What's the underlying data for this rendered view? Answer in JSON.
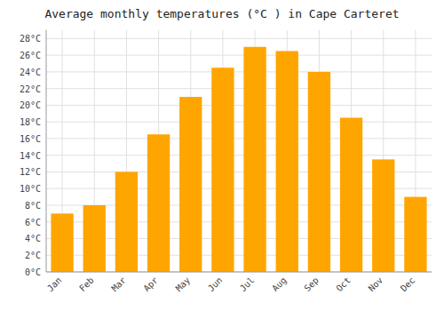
{
  "chart_data": {
    "type": "bar",
    "title": "Average monthly temperatures (°C ) in Cape Carteret",
    "categories": [
      "Jan",
      "Feb",
      "Mar",
      "Apr",
      "May",
      "Jun",
      "Jul",
      "Aug",
      "Sep",
      "Oct",
      "Nov",
      "Dec"
    ],
    "values": [
      7,
      8,
      12,
      16.5,
      21,
      24.5,
      27,
      26.5,
      24,
      18.5,
      13.5,
      9
    ],
    "color": "#FFA500",
    "ylim": [
      0,
      29
    ],
    "yticks": [
      {
        "value": 0,
        "label": "0°C"
      },
      {
        "value": 2,
        "label": "2°C"
      },
      {
        "value": 4,
        "label": "4°C"
      },
      {
        "value": 6,
        "label": "6°C"
      },
      {
        "value": 8,
        "label": "8°C"
      },
      {
        "value": 10,
        "label": "10°C"
      },
      {
        "value": 12,
        "label": "12°C"
      },
      {
        "value": 14,
        "label": "14°C"
      },
      {
        "value": 16,
        "label": "16°C"
      },
      {
        "value": 18,
        "label": "18°C"
      },
      {
        "value": 20,
        "label": "20°C"
      },
      {
        "value": 22,
        "label": "22°C"
      },
      {
        "value": 24,
        "label": "24°C"
      },
      {
        "value": 26,
        "label": "26°C"
      },
      {
        "value": 28,
        "label": "28°C"
      }
    ],
    "grid": true
  }
}
